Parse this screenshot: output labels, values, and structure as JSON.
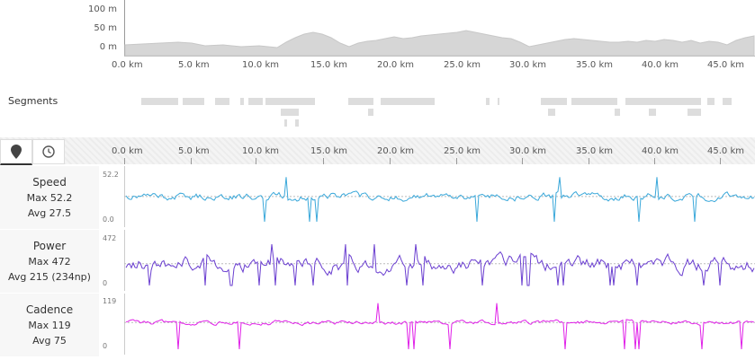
{
  "elevation": {
    "y_ticks": [
      "100 m",
      "50 m",
      "0 m"
    ],
    "x_ticks": [
      "0.0 km",
      "5.0 km",
      "10.0 km",
      "15.0 km",
      "20.0 km",
      "25.0 km",
      "30.0 km",
      "35.0 km",
      "40.0 km",
      "45.0 km"
    ]
  },
  "segments": {
    "label": "Segments"
  },
  "toolbar": {
    "location_icon": "map-pin-icon",
    "time_icon": "clock-icon"
  },
  "axis": {
    "x_ticks": [
      "0.0 km",
      "5.0 km",
      "10.0 km",
      "15.0 km",
      "20.0 km",
      "25.0 km",
      "30.0 km",
      "35.0 km",
      "40.0 km",
      "45.0 km"
    ]
  },
  "rows": [
    {
      "title": "Speed",
      "line1": "Max 52.2",
      "line2": "Avg 27.5",
      "ymax": "52.2",
      "ymin": "0.0",
      "color": "#3aa8da"
    },
    {
      "title": "Power",
      "line1": "Max 472",
      "line2": "Avg 215 (234np)",
      "ymax": "472",
      "ymin": "0",
      "color": "#6a3ed0"
    },
    {
      "title": "Cadence",
      "line1": "Max 119",
      "line2": "Avg 75",
      "ymax": "119",
      "ymin": "0",
      "color": "#e020e8"
    }
  ]
}
